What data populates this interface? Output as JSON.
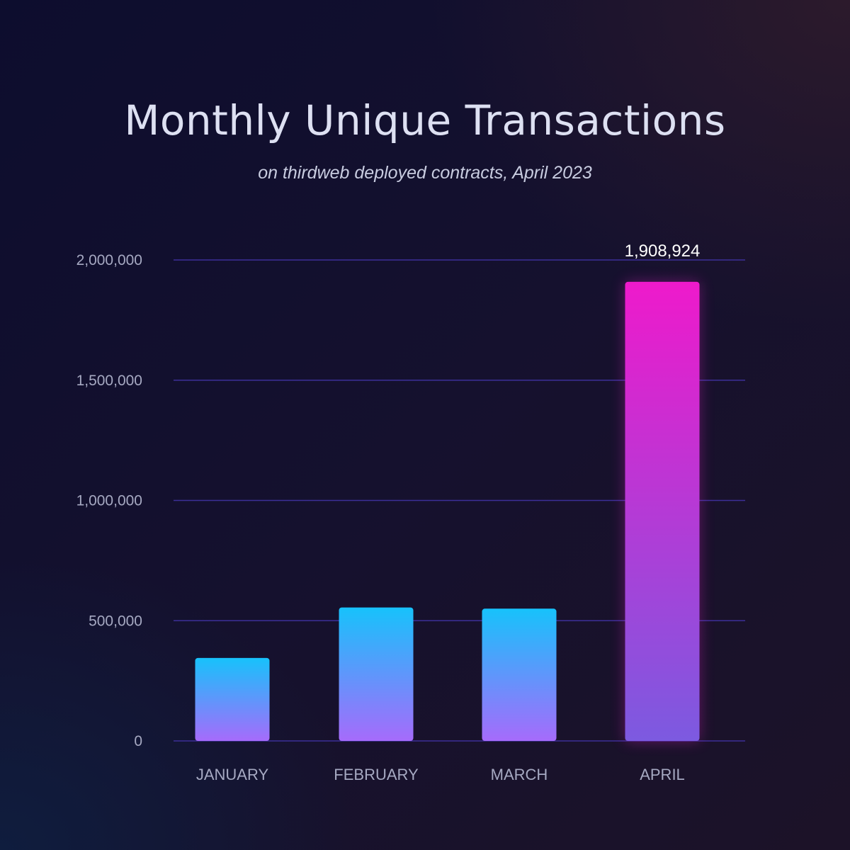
{
  "colors": {
    "bar_gradient_top": "#17c2fb",
    "bar_gradient_bottom": "#a66bfb",
    "highlight_gradient_top": "#ee1acb",
    "highlight_gradient_bottom": "#7c5ae0",
    "gridline": "#3c2f98"
  },
  "chart_data": {
    "type": "bar",
    "title": "Monthly Unique Transactions",
    "subtitle": "on thirdweb deployed contracts, April 2023",
    "categories": [
      "JANUARY",
      "FEBRUARY",
      "MARCH",
      "APRIL"
    ],
    "values": [
      345000,
      555000,
      550000,
      1908924
    ],
    "data_labels": [
      "",
      "",
      "",
      "1,908,924"
    ],
    "yticks": [
      0,
      500000,
      1000000,
      1500000,
      2000000
    ],
    "ytick_labels": [
      "0",
      "500,000",
      "1,000,000",
      "1,500,000",
      "2,000,000"
    ],
    "ylim": [
      0,
      2000000
    ],
    "highlight_index": 3,
    "xlabel": "",
    "ylabel": "",
    "grid": true,
    "legend": "none"
  }
}
